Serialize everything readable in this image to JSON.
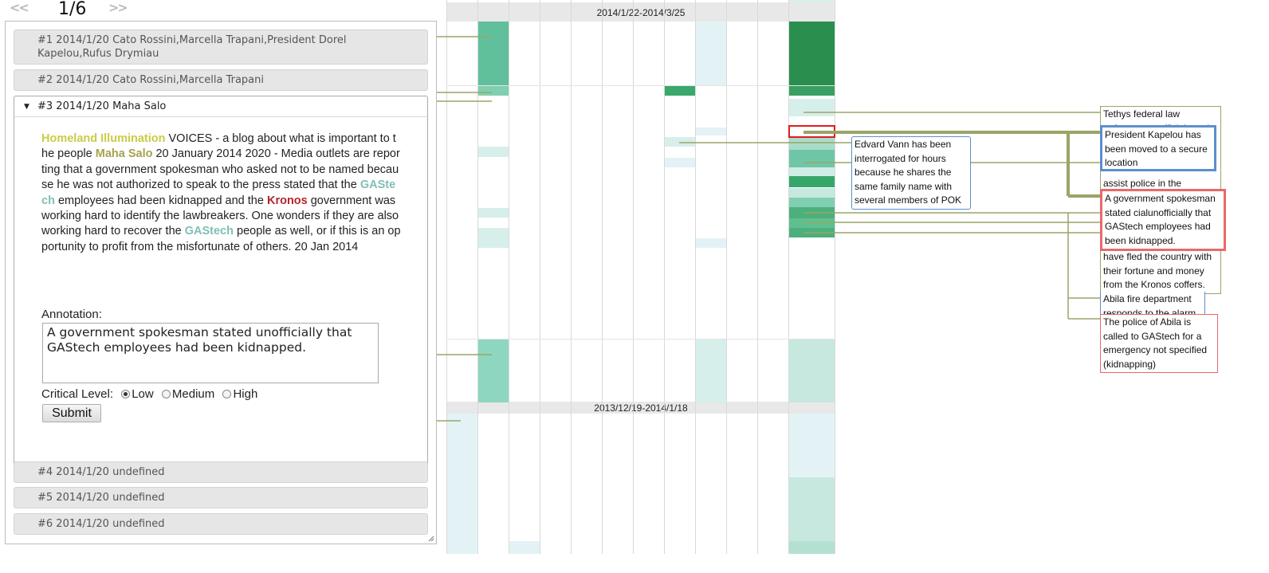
{
  "pager": {
    "prev": "<<",
    "counter": "1/6",
    "next": ">>"
  },
  "accordion": {
    "items": [
      {
        "label": "#1 2014/1/20 Cato Rossini,Marcella Trapani,President Dorel Kapelou,Rufus Drymiau"
      },
      {
        "label": "#2 2014/1/20 Cato Rossini,Marcella Trapani"
      },
      {
        "label": "#3 2014/1/20 Maha Salo"
      },
      {
        "label": "#4 2014/1/20 undefined"
      },
      {
        "label": "#5 2014/1/20 undefined"
      },
      {
        "label": "#6 2014/1/20 undefined"
      }
    ],
    "article": {
      "t1": "Homeland Illumination",
      "t2": " VOICES - a blog about what is important to the people ",
      "t3": "Maha Salo",
      "t4": " 20 January 2014 2020 - Media outlets are reporting that a government spokesman who asked not to be named because he was not authorized to speak to the press stated that the ",
      "t5": "GAStech",
      "t6": " employees had been kidnapped and the ",
      "t7": "Kronos",
      "t8": " government was working hard to identify the lawbreakers. One wonders if they are also working hard to recover the ",
      "t9": "GAStech",
      "t10": " people as well, or if this is an opportunity to profit from the misfortunate of others. 20 Jan 2014"
    },
    "annotation_label": "Annotation:",
    "annotation_value": "A government spokesman stated unofficially that GAStech employees had been kidnapped.",
    "critical_label": "Critical Level:",
    "levels": [
      "Low",
      "Medium",
      "High"
    ],
    "selected_level": "Low",
    "submit_label": "Submit"
  },
  "heatmap": {
    "bands": [
      "2014/1/22-2014/3/25",
      "2013/12/19-2014/1/18"
    ]
  },
  "callouts": [
    "Tethys federal law enforcement officials and",
    "President Kapelou has been moved to a secure location",
    "Edvard Vann has been interrogated for hours because he shares the same family name with several members of POK",
    "assist police in the",
    "A government spokesman stated cialunofficially that GAStech employees had been kidnapped.",
    "have fled the country with their fortune and money from the Kronos coffers.",
    "Abila fire department responds to the alarm",
    "The police of Abila is called to GAStech for a emergency not specified (kidnapping)"
  ],
  "colors": {
    "olive_line": "#9aa566",
    "blue_border": "#5b8fcf",
    "red_border": "#e8696b",
    "highlight_red": "#e11b1b",
    "green_dark": "#2a8f4e",
    "green_mid": "#5fbf99",
    "teal_light": "#cfeae5",
    "cyan_light": "#e3f3f5"
  }
}
